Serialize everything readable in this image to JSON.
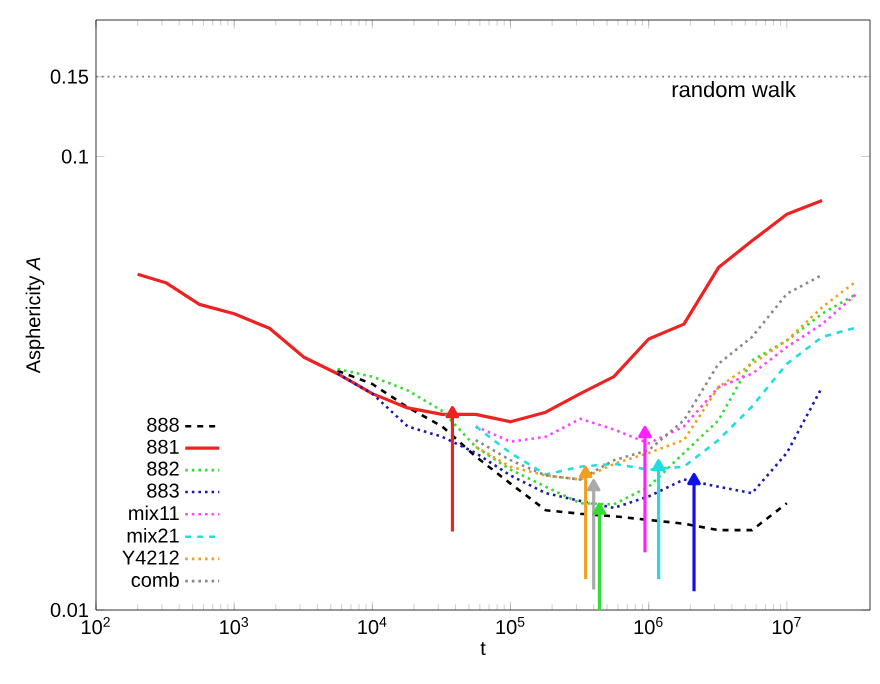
{
  "chart_data": {
    "type": "line",
    "xlabel": "t",
    "ylabel": "Asphericity *A*",
    "log": "xy",
    "grid": false,
    "legend": "bottom left",
    "marker": "none",
    "xlim": [
      100,
      40000000
    ],
    "ylim": [
      0.01,
      0.2
    ],
    "xticks": [
      {
        "value": 100,
        "label": "10$^{2}$"
      },
      {
        "value": 1000,
        "label": "10$^{3}$"
      },
      {
        "value": 10000,
        "label": "10$^{4}$"
      },
      {
        "value": 100000,
        "label": "10$^{5}$"
      },
      {
        "value": 1000000,
        "label": "10$^{6}$"
      },
      {
        "value": 10000000,
        "label": "10$^{7}$"
      }
    ],
    "yticks": [
      0.01,
      0.1,
      0.15
    ],
    "x": [
      200,
      320,
      560,
      1000,
      1800,
      3200,
      5600,
      10000,
      18000,
      32000,
      56000,
      100000,
      180000,
      320000,
      560000,
      1000000,
      1800000,
      3200000,
      5600000,
      10000000,
      18000000,
      32000000
    ],
    "ref_lines": [
      {
        "axis": "y",
        "value": 0.15,
        "label": "random walk",
        "color": "#777777",
        "line_style": "dotted"
      }
    ],
    "series": [
      {
        "name": "888",
        "color": "#000000",
        "line_style": "dashed",
        "values": [
          null,
          null,
          null,
          null,
          null,
          null,
          0.0337,
          0.0315,
          0.028,
          0.0254,
          0.0218,
          0.019,
          0.0166,
          0.0163,
          0.0161,
          0.0158,
          0.0155,
          0.015,
          0.015,
          0.0172,
          null,
          null
        ]
      },
      {
        "name": "881",
        "color": "#ee2222",
        "line_style": "solid",
        "values": [
          0.055,
          0.0527,
          0.0472,
          0.045,
          0.0418,
          0.0361,
          0.0332,
          0.03,
          0.0279,
          0.027,
          0.027,
          0.026,
          0.0273,
          0.03,
          0.0327,
          0.0396,
          0.0427,
          0.0569,
          0.0652,
          0.0746,
          0.08,
          null
        ]
      },
      {
        "name": "882",
        "color": "#33dd33",
        "line_style": "dotted",
        "values": [
          null,
          null,
          null,
          null,
          null,
          null,
          0.034,
          0.0327,
          0.0305,
          0.0275,
          0.0229,
          0.0204,
          0.0187,
          0.0172,
          0.0171,
          0.0187,
          0.0222,
          0.0262,
          0.0355,
          0.0393,
          0.045,
          0.0498
        ]
      },
      {
        "name": "883",
        "color": "#1a1aaa",
        "line_style": "dotted",
        "values": [
          null,
          null,
          null,
          null,
          null,
          null,
          0.0332,
          0.03,
          0.0254,
          0.0241,
          0.0222,
          0.0198,
          0.0181,
          0.0174,
          0.0168,
          0.0178,
          0.0194,
          0.0187,
          0.0181,
          0.0222,
          0.031,
          null
        ]
      },
      {
        "name": "mix11",
        "color": "#ff44ff",
        "line_style": "dotted",
        "values": [
          null,
          null,
          null,
          null,
          null,
          null,
          null,
          null,
          null,
          null,
          0.0254,
          0.0235,
          0.0241,
          0.0264,
          0.025,
          0.0233,
          0.0254,
          0.031,
          0.0332,
          0.038,
          0.0427,
          0.0498
        ]
      },
      {
        "name": "mix21",
        "color": "#22dddd",
        "line_style": "dashed",
        "values": [
          null,
          null,
          null,
          null,
          null,
          null,
          null,
          null,
          null,
          null,
          0.0254,
          0.0222,
          0.0199,
          0.0207,
          0.021,
          0.0204,
          0.0207,
          0.0237,
          0.0281,
          0.0349,
          0.04,
          0.042
        ]
      },
      {
        "name": "Y4212",
        "color": "#f0a020",
        "line_style": "dotted",
        "values": [
          null,
          null,
          null,
          null,
          null,
          null,
          null,
          null,
          null,
          null,
          0.0229,
          0.0207,
          0.0198,
          0.0194,
          0.021,
          0.0222,
          0.0237,
          0.031,
          0.0349,
          0.0393,
          0.0465,
          0.0532
        ]
      },
      {
        "name": "comb",
        "color": "#888888",
        "line_style": "dotted",
        "values": [
          null,
          null,
          null,
          null,
          null,
          null,
          null,
          null,
          null,
          null,
          0.0237,
          0.0214,
          0.0198,
          0.0194,
          0.0214,
          0.0225,
          0.0262,
          0.0349,
          0.04,
          0.0498,
          0.0548,
          null
        ]
      },
      {
        "color": "#ee2222",
        "marker": "triangle",
        "x": [
          38000,
          38000
        ],
        "values": [
          0.0149,
          0.0271
        ]
      },
      {
        "color": "#f0a020",
        "marker": "triangle",
        "x": [
          350000,
          350000
        ],
        "values": [
          0.0117,
          0.02
        ]
      },
      {
        "color": "#aaaaaa",
        "marker": "triangle",
        "x": [
          400000,
          400000
        ],
        "values": [
          0.0111,
          0.0187
        ]
      },
      {
        "color": "#33dd33",
        "marker": "triangle",
        "x": [
          440000,
          440000
        ],
        "values": [
          0.01,
          0.0166
        ]
      },
      {
        "color": "#ff22ff",
        "marker": "triangle",
        "x": [
          940000,
          940000
        ],
        "values": [
          0.0134,
          0.0245
        ]
      },
      {
        "color": "#22dddd",
        "marker": "triangle",
        "x": [
          1180000,
          1180000
        ],
        "values": [
          0.0117,
          0.0207
        ]
      },
      {
        "color": "#1111ee",
        "marker": "triangle",
        "x": [
          2130000,
          2130000
        ],
        "values": [
          0.011,
          0.0193
        ]
      }
    ]
  }
}
